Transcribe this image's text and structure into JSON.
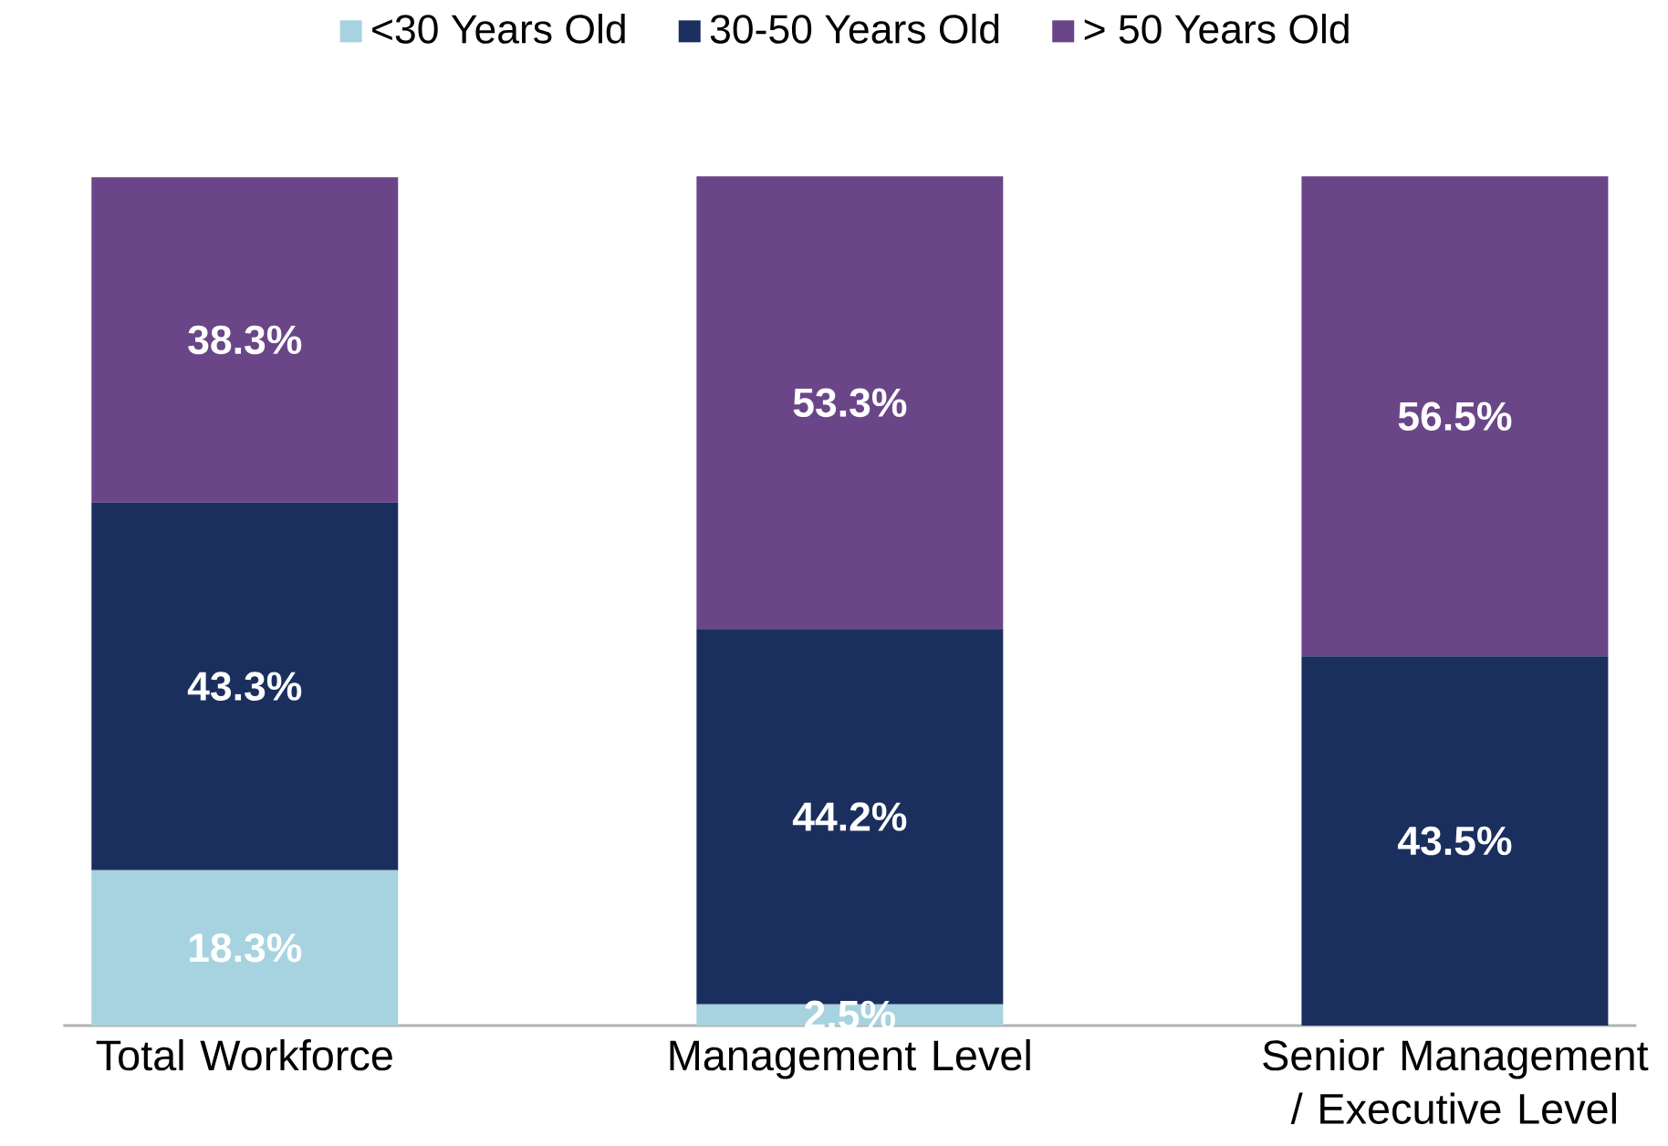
{
  "chart_data": {
    "type": "bar",
    "stacked": true,
    "legend": "top",
    "categories": [
      "Total Workforce",
      "Management Level",
      "Senior Management / Executive Level"
    ],
    "series": [
      {
        "name": "<30 Years Old",
        "color": "#a6d3df",
        "values": [
          18.3,
          2.5,
          0
        ],
        "value_labels": [
          "18.3%",
          "2.5%",
          null
        ]
      },
      {
        "name": "30-50 Years Old",
        "color": "#1b2f5f",
        "values": [
          43.3,
          44.2,
          43.5
        ],
        "value_labels": [
          "43.3%",
          "44.2%",
          "43.5%"
        ]
      },
      {
        "name": "> 50 Years Old",
        "color": "#6a4689",
        "values": [
          38.3,
          53.3,
          56.5
        ],
        "value_labels": [
          "38.3%",
          "53.3%",
          "56.5%"
        ]
      }
    ]
  }
}
